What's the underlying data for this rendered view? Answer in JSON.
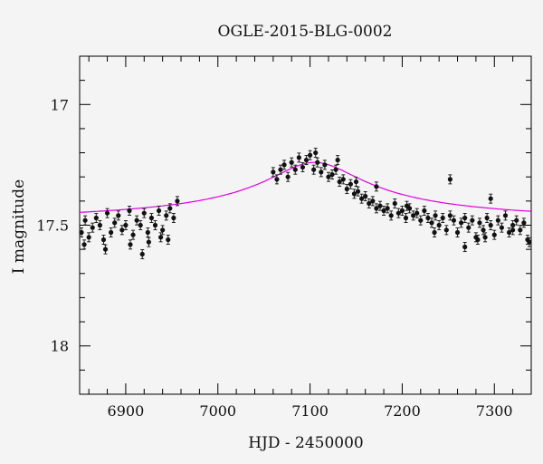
{
  "chart_data": {
    "type": "scatter",
    "title": "OGLE-2015-BLG-0002",
    "xlabel": "HJD - 2450000",
    "ylabel": "I magnitude",
    "xlim": [
      6850,
      7340
    ],
    "ylim": [
      18.2,
      16.8
    ],
    "y_inverted": true,
    "x_ticks": [
      6900,
      7000,
      7100,
      7200,
      7300
    ],
    "y_ticks": [
      "17",
      "17.5",
      "18"
    ],
    "grid": false,
    "colors": {
      "points": "#111111",
      "model": "#e000e0",
      "background": "#f4f4f4"
    },
    "model": {
      "type": "line",
      "baseline": 17.5,
      "peak_mag": 17.24,
      "t0": 7105,
      "tE": 62,
      "x_range": [
        6850,
        7340
      ]
    },
    "series": [
      {
        "type": "scatter",
        "x": [
          6852,
          6856,
          6860,
          6864,
          6868,
          6872,
          6876,
          6880,
          6884,
          6888,
          6892,
          6896,
          6900,
          6904,
          6908,
          6912,
          6916,
          6920,
          6924,
          6928,
          6932,
          6936,
          6940,
          6944,
          6948,
          6952,
          6956,
          7060,
          7064,
          7068,
          7072,
          7076,
          7080,
          7084,
          7088,
          7092,
          7096,
          7100,
          7104,
          7108,
          7112,
          7116,
          7120,
          7124,
          7128,
          7132,
          7136,
          7140,
          7144,
          7148,
          7152,
          7156,
          7160,
          7164,
          7168,
          7172,
          7176,
          7180,
          7184,
          7188,
          7192,
          7196,
          7200,
          7204,
          7208,
          7212,
          7216,
          7220,
          7224,
          7228,
          7232,
          7236,
          7240,
          7244,
          7248,
          7252,
          7256,
          7260,
          7264,
          7268,
          7272,
          7276,
          7280,
          7284,
          7288,
          7292,
          7296,
          7300,
          7304,
          7308,
          7312,
          7316,
          7320,
          7324,
          7328,
          7332,
          7336
        ],
        "y": [
          17.53,
          17.48,
          17.55,
          17.51,
          17.47,
          17.5,
          17.56,
          17.45,
          17.53,
          17.49,
          17.46,
          17.52,
          17.5,
          17.44,
          17.54,
          17.48,
          17.5,
          17.45,
          17.53,
          17.47,
          17.5,
          17.44,
          17.52,
          17.46,
          17.43,
          17.47,
          17.4,
          17.28,
          17.31,
          17.27,
          17.25,
          17.3,
          17.24,
          17.27,
          17.22,
          17.26,
          17.23,
          17.21,
          17.27,
          17.24,
          17.28,
          17.25,
          17.3,
          17.29,
          17.27,
          17.32,
          17.31,
          17.35,
          17.33,
          17.37,
          17.36,
          17.39,
          17.38,
          17.41,
          17.4,
          17.43,
          17.42,
          17.44,
          17.43,
          17.46,
          17.41,
          17.45,
          17.44,
          17.47,
          17.43,
          17.46,
          17.45,
          17.48,
          17.44,
          17.47,
          17.49,
          17.46,
          17.5,
          17.47,
          17.52,
          17.46,
          17.48,
          17.53,
          17.49,
          17.47,
          17.51,
          17.48,
          17.55,
          17.49,
          17.52,
          17.47,
          17.5,
          17.54,
          17.48,
          17.51,
          17.46,
          17.53,
          17.5,
          17.48,
          17.52,
          17.49,
          17.56
        ]
      },
      {
        "type": "scatter",
        "x": [
          6855,
          6878,
          6905,
          6918,
          6925,
          6938,
          6946,
          7106,
          7130,
          7150,
          7172,
          7205,
          7235,
          7252,
          7268,
          7282,
          7290,
          7296,
          7320,
          7338
        ],
        "y": [
          17.58,
          17.6,
          17.58,
          17.62,
          17.57,
          17.55,
          17.56,
          17.2,
          17.23,
          17.32,
          17.34,
          17.42,
          17.53,
          17.31,
          17.59,
          17.56,
          17.55,
          17.39,
          17.52,
          17.57
        ]
      }
    ]
  }
}
